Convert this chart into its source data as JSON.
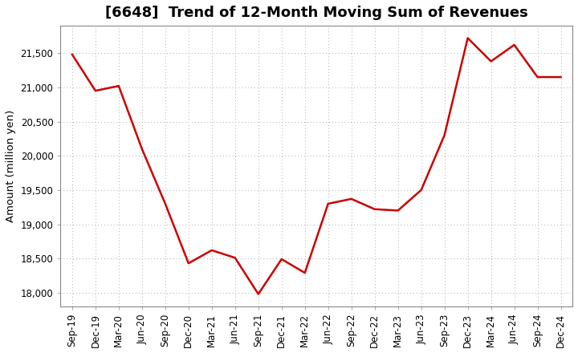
{
  "title": "[6648]  Trend of 12-Month Moving Sum of Revenues",
  "ylabel": "Amount (million yen)",
  "background_color": "#ffffff",
  "plot_background_color": "#ffffff",
  "line_color": "#cc0000",
  "line_width": 1.8,
  "grid_color": "#aaaaaa",
  "grid_style": "dotted",
  "xlabels": [
    "Sep-19",
    "Dec-19",
    "Mar-20",
    "Jun-20",
    "Sep-20",
    "Dec-20",
    "Mar-21",
    "Jun-21",
    "Sep-21",
    "Dec-21",
    "Mar-22",
    "Jun-22",
    "Sep-22",
    "Dec-22",
    "Mar-23",
    "Jun-23",
    "Sep-23",
    "Dec-23",
    "Mar-24",
    "Jun-24",
    "Sep-24",
    "Dec-24"
  ],
  "values": [
    21480,
    20950,
    21020,
    20100,
    19300,
    18430,
    18620,
    18510,
    17980,
    18490,
    18290,
    19300,
    19370,
    19220,
    19200,
    19500,
    20300,
    21720,
    21380,
    21620,
    21150,
    21150
  ],
  "ylim": [
    17800,
    21900
  ],
  "yticks": [
    18000,
    18500,
    19000,
    19500,
    20000,
    20500,
    21000,
    21500
  ],
  "title_fontsize": 13,
  "label_fontsize": 9.5,
  "tick_fontsize": 8.5
}
